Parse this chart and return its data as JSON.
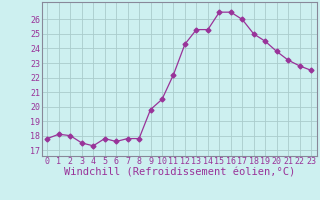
{
  "x": [
    0,
    1,
    2,
    3,
    4,
    5,
    6,
    7,
    8,
    9,
    10,
    11,
    12,
    13,
    14,
    15,
    16,
    17,
    18,
    19,
    20,
    21,
    22,
    23
  ],
  "y": [
    17.8,
    18.1,
    18.0,
    17.5,
    17.3,
    17.8,
    17.6,
    17.8,
    17.8,
    19.8,
    20.5,
    22.2,
    24.3,
    25.3,
    25.3,
    26.5,
    26.5,
    26.0,
    25.0,
    24.5,
    23.8,
    23.2,
    22.8,
    22.5
  ],
  "line_color": "#993399",
  "marker": "D",
  "marker_size": 2.5,
  "bg_color": "#cdf0f0",
  "grid_color": "#aacccc",
  "xlabel": "Windchill (Refroidissement éolien,°C)",
  "xlabel_fontsize": 7.5,
  "yticks": [
    17,
    18,
    19,
    20,
    21,
    22,
    23,
    24,
    25,
    26
  ],
  "xtick_labels": [
    "0",
    "1",
    "2",
    "3",
    "4",
    "5",
    "6",
    "7",
    "8",
    "9",
    "10",
    "11",
    "12",
    "13",
    "14",
    "15",
    "16",
    "17",
    "18",
    "19",
    "20",
    "21",
    "22",
    "23"
  ],
  "ylim": [
    16.6,
    27.2
  ],
  "xlim": [
    -0.5,
    23.5
  ],
  "tick_fontsize": 6.0
}
